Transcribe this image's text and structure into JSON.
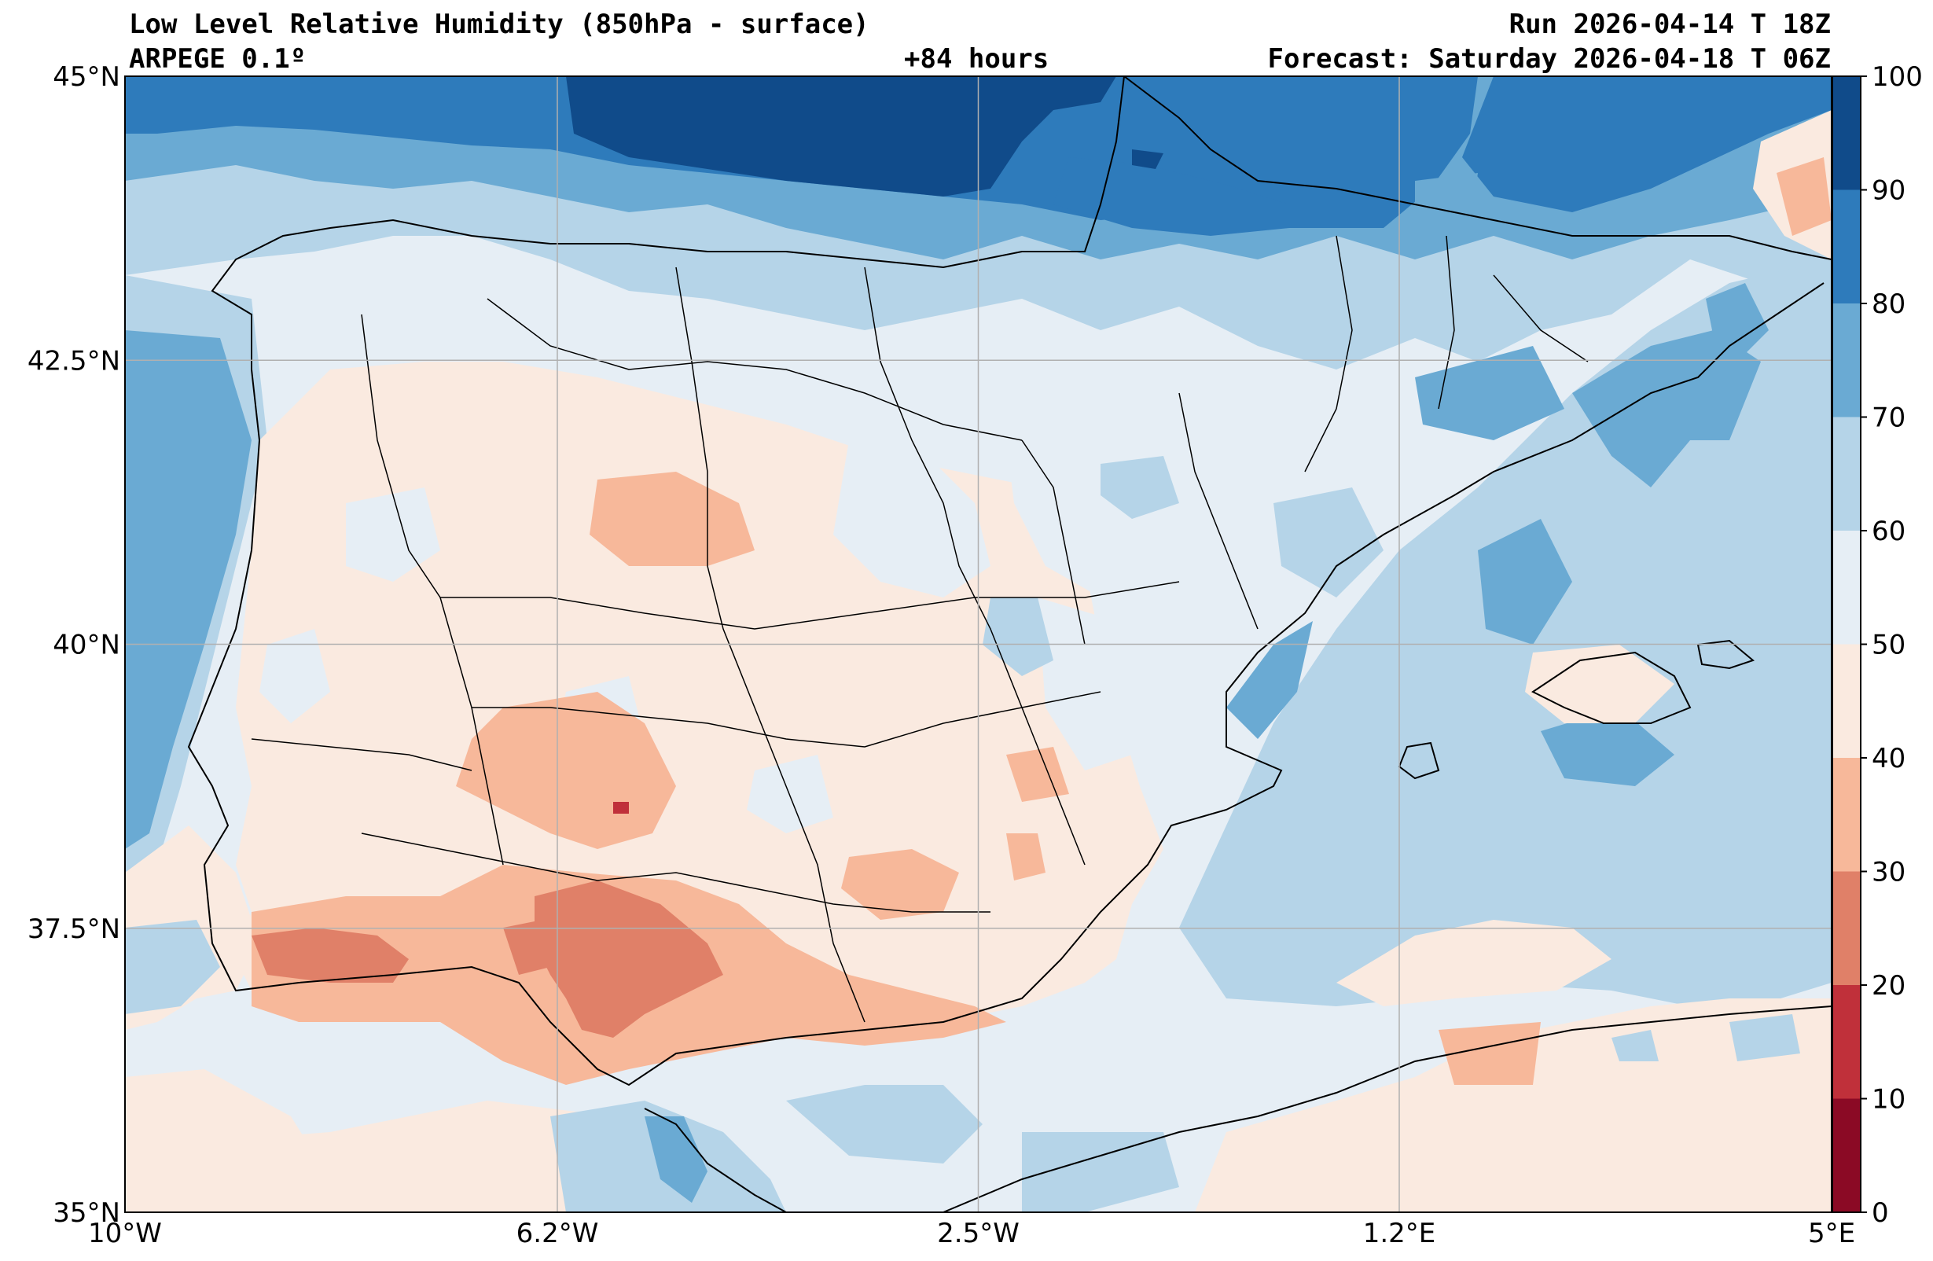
{
  "header": {
    "title": "Low Level Relative Humidity (850hPa - surface)",
    "model": "ARPEGE 0.1º",
    "run": "Run 2026-04-14 T 18Z",
    "lead": "+84 hours",
    "forecast": "Forecast: Saturday 2026-04-18 T 06Z"
  },
  "map": {
    "lon_range": [
      -10,
      5
    ],
    "lat_range": [
      35,
      45
    ],
    "lon_ticks": [
      {
        "value": -10,
        "label": "10°W"
      },
      {
        "value": -6.2,
        "label": "6.2°W"
      },
      {
        "value": -2.5,
        "label": "2.5°W"
      },
      {
        "value": 1.2,
        "label": "1.2°E"
      },
      {
        "value": 5,
        "label": "5°E"
      }
    ],
    "lat_ticks": [
      {
        "value": 35,
        "label": "35°N"
      },
      {
        "value": 37.5,
        "label": "37.5°N"
      },
      {
        "value": 40,
        "label": "40°N"
      },
      {
        "value": 42.5,
        "label": "42.5°N"
      },
      {
        "value": 45,
        "label": "45°N"
      }
    ]
  },
  "colorbar": {
    "levels": [
      0,
      10,
      20,
      30,
      40,
      50,
      60,
      70,
      80,
      90,
      100
    ],
    "labels": [
      "0",
      "10",
      "20",
      "30",
      "40",
      "50",
      "60",
      "70",
      "80",
      "90",
      "100"
    ],
    "colors": [
      "#8b0a25",
      "#c0303a",
      "#e08068",
      "#f7b89a",
      "#faeae0",
      "#e6eef5",
      "#b5d4e8",
      "#6aaad3",
      "#2e7bbb",
      "#104b8a"
    ]
  }
}
